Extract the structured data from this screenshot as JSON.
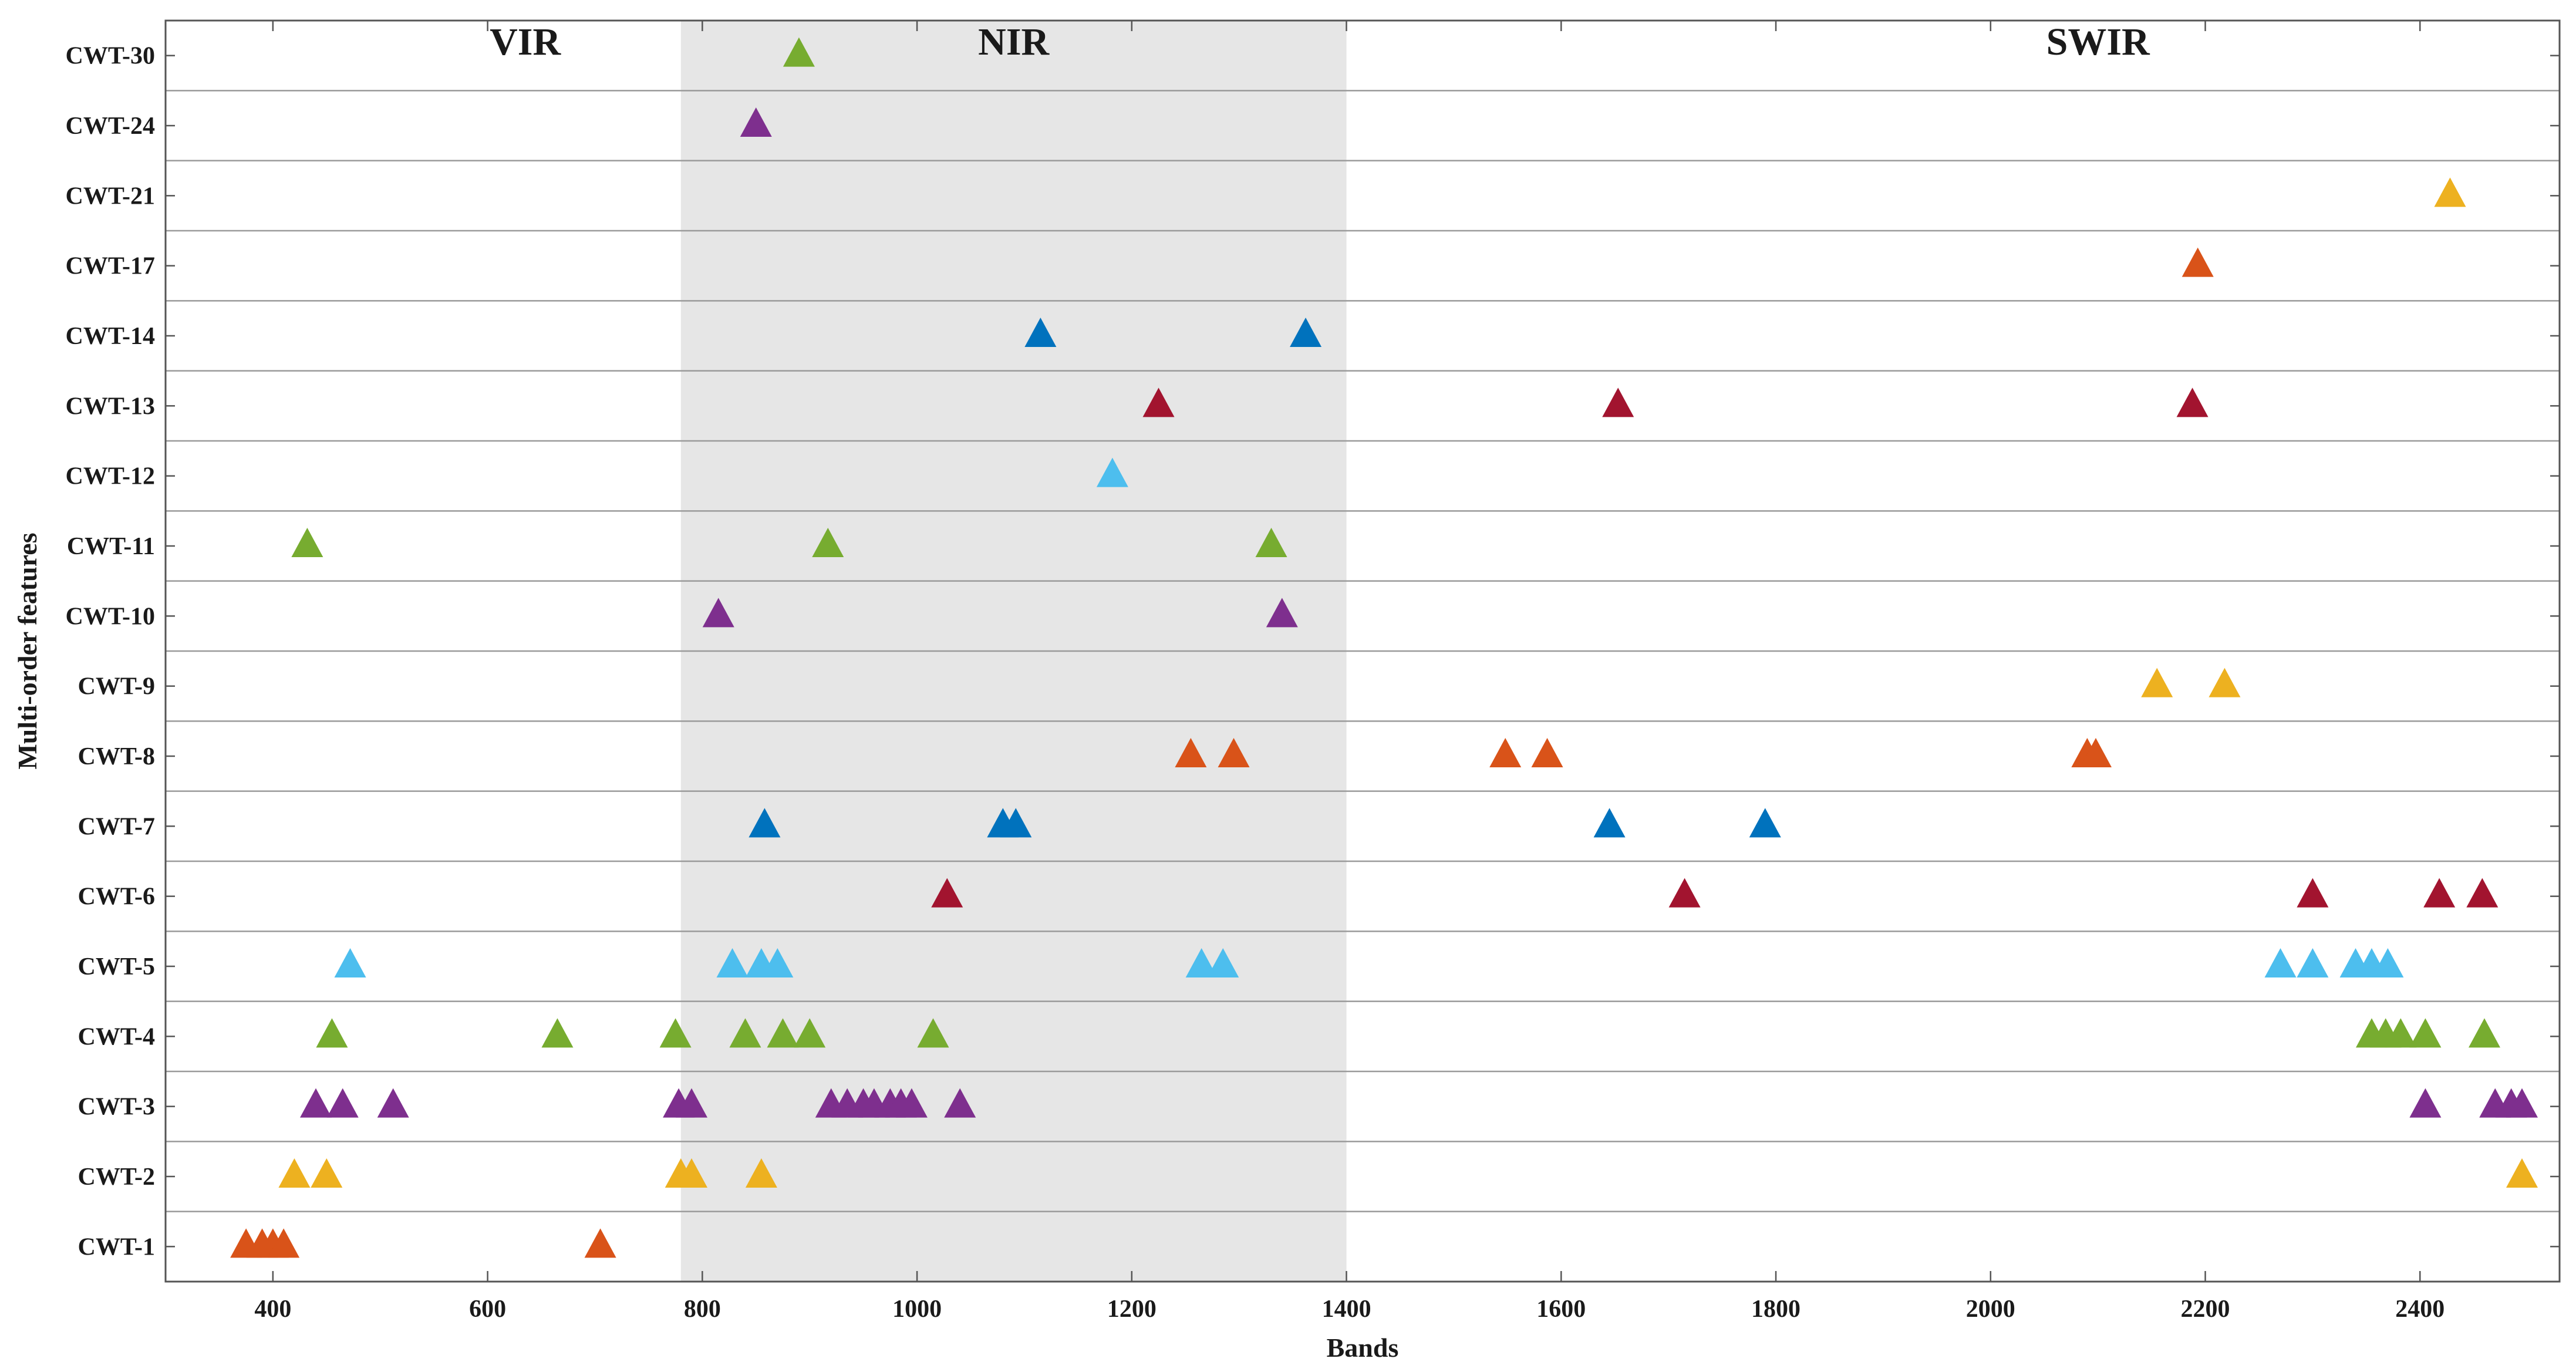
{
  "chart_data": {
    "type": "scatter",
    "xlabel": "Bands",
    "ylabel": "Multi-order features",
    "xlim": [
      300,
      2530
    ],
    "x_ticks": [
      400,
      600,
      800,
      1000,
      1200,
      1400,
      1600,
      1800,
      2000,
      2200,
      2400
    ],
    "grid": "horizontal lines between rows",
    "marker": "triangle",
    "regions": [
      {
        "label": "VIR",
        "x_start": 300,
        "x_end": 780,
        "shaded": false
      },
      {
        "label": "NIR",
        "x_start": 780,
        "x_end": 1400,
        "shaded": true,
        "fill": "#e6e6e6"
      },
      {
        "label": "SWIR",
        "x_start": 1400,
        "x_end": 2530,
        "shaded": false
      }
    ],
    "colors": {
      "orange": "#d95319",
      "yellow": "#edb120",
      "purple": "#7e2f8e",
      "green": "#77ac30",
      "light_blue": "#4dbeee",
      "crimson": "#a2142f",
      "blue": "#0072bd"
    },
    "series": [
      {
        "name": "CWT-1",
        "color": "#d95319",
        "bands": [
          375,
          390,
          400,
          410,
          705
        ]
      },
      {
        "name": "CWT-2",
        "color": "#edb120",
        "bands": [
          420,
          450,
          780,
          790,
          855,
          2495
        ]
      },
      {
        "name": "CWT-3",
        "color": "#7e2f8e",
        "bands": [
          440,
          465,
          512,
          778,
          790,
          920,
          935,
          950,
          960,
          975,
          985,
          995,
          1040,
          2405,
          2470,
          2485,
          2495
        ]
      },
      {
        "name": "CWT-4",
        "color": "#77ac30",
        "bands": [
          455,
          665,
          775,
          840,
          875,
          900,
          1015,
          2355,
          2368,
          2382,
          2405,
          2460
        ]
      },
      {
        "name": "CWT-5",
        "color": "#4dbeee",
        "bands": [
          472,
          828,
          855,
          870,
          1265,
          1285,
          2270,
          2300,
          2340,
          2355,
          2370
        ]
      },
      {
        "name": "CWT-6",
        "color": "#a2142f",
        "bands": [
          1028,
          1715,
          2300,
          2418,
          2458
        ]
      },
      {
        "name": "CWT-7",
        "color": "#0072bd",
        "bands": [
          858,
          1080,
          1092,
          1645,
          1790
        ]
      },
      {
        "name": "CWT-8",
        "color": "#d95319",
        "bands": [
          1255,
          1295,
          1548,
          1587,
          2090,
          2098
        ]
      },
      {
        "name": "CWT-9",
        "color": "#edb120",
        "bands": [
          2155,
          2218
        ]
      },
      {
        "name": "CWT-10",
        "color": "#7e2f8e",
        "bands": [
          815,
          1340
        ]
      },
      {
        "name": "CWT-11",
        "color": "#77ac30",
        "bands": [
          432,
          917,
          1330
        ]
      },
      {
        "name": "CWT-12",
        "color": "#4dbeee",
        "bands": [
          1182
        ]
      },
      {
        "name": "CWT-13",
        "color": "#a2142f",
        "bands": [
          1225,
          1653,
          2188
        ]
      },
      {
        "name": "CWT-14",
        "color": "#0072bd",
        "bands": [
          1115,
          1362
        ]
      },
      {
        "name": "CWT-17",
        "color": "#d95319",
        "bands": [
          2193
        ]
      },
      {
        "name": "CWT-21",
        "color": "#edb120",
        "bands": [
          2428
        ]
      },
      {
        "name": "CWT-24",
        "color": "#7e2f8e",
        "bands": [
          850
        ]
      },
      {
        "name": "CWT-30",
        "color": "#77ac30",
        "bands": [
          890
        ]
      }
    ]
  }
}
